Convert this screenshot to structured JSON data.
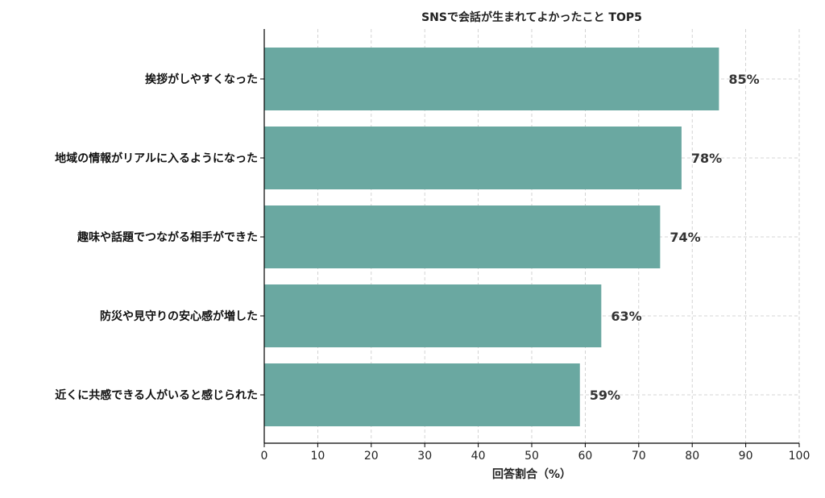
{
  "chart_data": {
    "type": "bar",
    "orientation": "horizontal",
    "title": "SNSで会話が生まれてよかったこと TOP5",
    "xlabel": "回答割合（%）",
    "ylabel": "",
    "xlim": [
      0,
      100
    ],
    "xticks": [
      0,
      10,
      20,
      30,
      40,
      50,
      60,
      70,
      80,
      90,
      100
    ],
    "grid": true,
    "bar_color": "#6aa8a1",
    "categories": [
      "挨拶がしやすくなった",
      "地域の情報がリアルに入るようになった",
      "趣味や話題でつながる相手ができた",
      "防災や見守りの安心感が増した",
      "近くに共感できる人がいると感じられた"
    ],
    "values": [
      85,
      78,
      74,
      63,
      59
    ],
    "data_labels": [
      "85%",
      "78%",
      "74%",
      "63%",
      "59%"
    ]
  }
}
